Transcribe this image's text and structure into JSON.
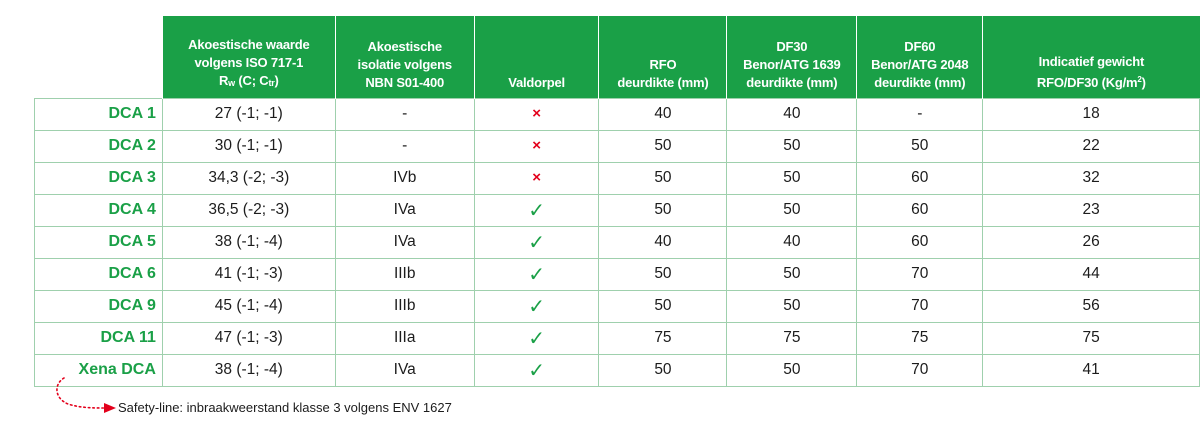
{
  "header": {
    "acoustic_value": {
      "line1": "Akoestische waarde",
      "line2": "volgens ISO 717-1",
      "r": "R",
      "w": "w",
      "c": " (C; C",
      "tr": "tr",
      "close": ")"
    },
    "acoustic_isolation": {
      "line1": "Akoestische",
      "line2": "isolatie volgens",
      "line3": "NBN S01-400"
    },
    "threshold": "Valdorpel",
    "rfo": {
      "line1": "RFO",
      "line2": "deurdikte (mm)"
    },
    "df30": {
      "line1": "DF30",
      "line2": "Benor/ATG 1639",
      "line3": "deurdikte (mm)"
    },
    "df60": {
      "line1": "DF60",
      "line2": "Benor/ATG 2048",
      "line3": "deurdikte (mm)"
    },
    "weight": {
      "line1": "Indicatief gewicht",
      "line2": "RFO/DF30 (Kg/m",
      "sup": "2",
      "close": ")"
    }
  },
  "marks": {
    "no": "×",
    "yes": "✓"
  },
  "rows": [
    {
      "name": "DCA 1",
      "acoustic": "27 (-1; -1)",
      "isolation": "-",
      "threshold": "no",
      "rfo": "40",
      "df30": "40",
      "df60": "-",
      "weight": "18"
    },
    {
      "name": "DCA 2",
      "acoustic": "30 (-1; -1)",
      "isolation": "-",
      "threshold": "no",
      "rfo": "50",
      "df30": "50",
      "df60": "50",
      "weight": "22"
    },
    {
      "name": "DCA 3",
      "acoustic": "34,3 (-2; -3)",
      "isolation": "IVb",
      "threshold": "no",
      "rfo": "50",
      "df30": "50",
      "df60": "60",
      "weight": "32"
    },
    {
      "name": "DCA 4",
      "acoustic": "36,5 (-2; -3)",
      "isolation": "IVa",
      "threshold": "yes",
      "rfo": "50",
      "df30": "50",
      "df60": "60",
      "weight": "23"
    },
    {
      "name": "DCA 5",
      "acoustic": "38 (-1; -4)",
      "isolation": "IVa",
      "threshold": "yes",
      "rfo": "40",
      "df30": "40",
      "df60": "60",
      "weight": "26"
    },
    {
      "name": "DCA 6",
      "acoustic": "41 (-1; -3)",
      "isolation": "IIIb",
      "threshold": "yes",
      "rfo": "50",
      "df30": "50",
      "df60": "70",
      "weight": "44"
    },
    {
      "name": "DCA 9",
      "acoustic": "45 (-1; -4)",
      "isolation": "IIIb",
      "threshold": "yes",
      "rfo": "50",
      "df30": "50",
      "df60": "70",
      "weight": "56"
    },
    {
      "name": "DCA 11",
      "acoustic": "47 (-1; -3)",
      "isolation": "IIIa",
      "threshold": "yes",
      "rfo": "75",
      "df30": "75",
      "df60": "75",
      "weight": "75"
    },
    {
      "name": "Xena DCA",
      "acoustic": "38 (-1; -4)",
      "isolation": "IVa",
      "threshold": "yes",
      "rfo": "50",
      "df30": "50",
      "df60": "70",
      "weight": "41"
    }
  ],
  "footnote": "Safety-line: inbraakweerstand klasse 3 volgens ENV 1627",
  "colors": {
    "green": "#1aa047",
    "red": "#e3001b",
    "grid": "#9fd0ad"
  }
}
